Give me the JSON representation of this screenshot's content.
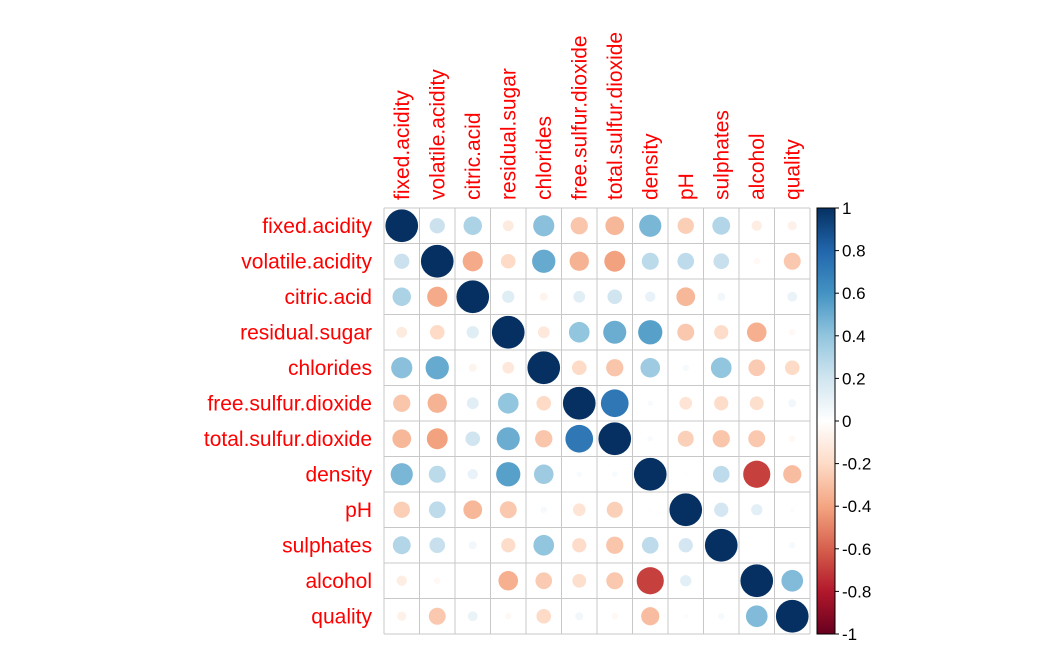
{
  "chart_data": {
    "type": "heatmap",
    "variables": [
      "fixed.acidity",
      "volatile.acidity",
      "citric.acid",
      "residual.sugar",
      "chlorides",
      "free.sulfur.dioxide",
      "total.sulfur.dioxide",
      "density",
      "pH",
      "sulphates",
      "alcohol",
      "quality"
    ],
    "matrix": [
      [
        1.0,
        0.22,
        0.32,
        -0.11,
        0.42,
        -0.28,
        -0.33,
        0.46,
        -0.25,
        0.3,
        -0.1,
        -0.08
      ],
      [
        0.22,
        1.0,
        -0.38,
        -0.2,
        0.51,
        -0.35,
        -0.41,
        0.27,
        0.26,
        0.23,
        -0.04,
        -0.27
      ],
      [
        0.32,
        -0.38,
        1.0,
        0.14,
        -0.06,
        0.13,
        0.2,
        0.1,
        -0.33,
        0.06,
        0.0,
        0.09
      ],
      [
        -0.11,
        -0.2,
        0.14,
        1.0,
        -0.13,
        0.4,
        0.5,
        0.55,
        -0.27,
        -0.19,
        -0.36,
        -0.04
      ],
      [
        0.42,
        0.51,
        -0.06,
        -0.13,
        1.0,
        -0.2,
        -0.28,
        0.36,
        0.04,
        0.4,
        -0.26,
        -0.2
      ],
      [
        -0.28,
        -0.35,
        0.13,
        0.4,
        -0.2,
        1.0,
        0.72,
        0.03,
        -0.15,
        -0.19,
        -0.18,
        0.06
      ],
      [
        -0.33,
        -0.41,
        0.2,
        0.5,
        -0.28,
        0.72,
        1.0,
        0.03,
        -0.24,
        -0.28,
        -0.27,
        -0.04
      ],
      [
        0.46,
        0.27,
        0.1,
        0.55,
        0.36,
        0.03,
        0.03,
        1.0,
        0.01,
        0.26,
        -0.69,
        -0.31
      ],
      [
        -0.25,
        0.26,
        -0.33,
        -0.27,
        0.04,
        -0.15,
        -0.24,
        0.01,
        1.0,
        0.19,
        0.12,
        0.02
      ],
      [
        0.3,
        0.23,
        0.06,
        -0.19,
        0.4,
        -0.19,
        -0.28,
        0.26,
        0.19,
        1.0,
        -0.0,
        0.04
      ],
      [
        -0.1,
        -0.04,
        0.0,
        -0.36,
        -0.26,
        -0.18,
        -0.27,
        -0.69,
        0.12,
        -0.0,
        1.0,
        0.44
      ],
      [
        -0.08,
        -0.27,
        0.09,
        -0.04,
        -0.2,
        0.06,
        -0.04,
        -0.31,
        0.02,
        0.04,
        0.44,
        1.0
      ]
    ],
    "colorbar": {
      "ticks": [
        "1",
        "0.8",
        "0.6",
        "0.4",
        "0.2",
        "0",
        "-0.2",
        "-0.4",
        "-0.6",
        "-0.8",
        "-1"
      ],
      "range": [
        -1,
        1
      ],
      "colors": [
        "#67001F",
        "#B2182B",
        "#D6604D",
        "#F4A582",
        "#FDDBC7",
        "#FFFFFF",
        "#D1E5F0",
        "#92C5DE",
        "#4393C3",
        "#2166AC",
        "#053061"
      ]
    },
    "label_color": "#FF0000",
    "grid": true
  }
}
